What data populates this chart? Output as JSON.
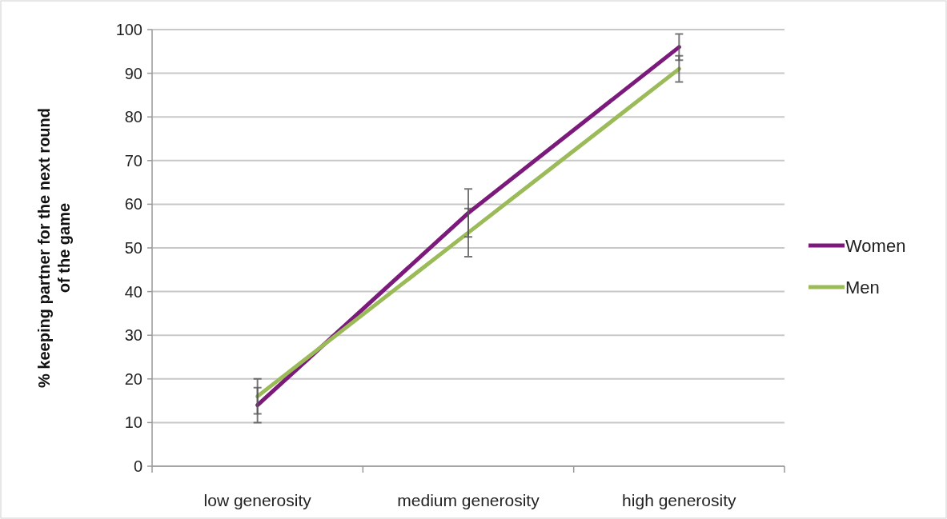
{
  "chart_data": {
    "type": "line",
    "ylabel": "% keeping partner for the next round of the game",
    "categories": [
      "low generosity",
      "medium generosity",
      "high generosity"
    ],
    "series": [
      {
        "name": "Women",
        "color": "#7b1a7b",
        "values": [
          14,
          58,
          96
        ],
        "errors": [
          4,
          5.5,
          3
        ]
      },
      {
        "name": "Men",
        "color": "#9bbb59",
        "values": [
          16,
          53.5,
          91
        ],
        "errors": [
          4,
          5.5,
          3
        ]
      }
    ],
    "ylim": [
      0,
      100
    ],
    "yticks": [
      0,
      10,
      20,
      30,
      40,
      50,
      60,
      70,
      80,
      90,
      100
    ],
    "grid": "y",
    "legend": "right",
    "marker": "none",
    "line_style": "solid"
  }
}
